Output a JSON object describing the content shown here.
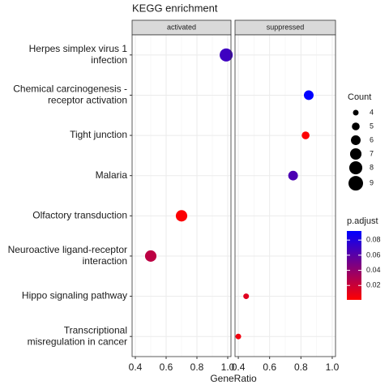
{
  "chart_data": {
    "type": "dotplot",
    "title": "KEGG enrichment",
    "facets": [
      "activated",
      "suppressed"
    ],
    "xlabel": "GeneRatio",
    "xlim": [
      0.379,
      1.021
    ],
    "xticks": [
      0.4,
      0.6,
      0.8,
      {
        "value": 1,
        "label": "1.0"
      }
    ],
    "grid": true,
    "rows": [
      {
        "label": [
          "Herpes simplex virus 1",
          "infection"
        ],
        "facet": "activated",
        "x": 0.99,
        "count": 8,
        "p_adjust": 0.07
      },
      {
        "label": [
          "Chemical carcinogenesis -",
          "receptor activation"
        ],
        "facet": "suppressed",
        "x": 0.85,
        "count": 6,
        "p_adjust": 0.092
      },
      {
        "label": [
          "Tight junction"
        ],
        "facet": "suppressed",
        "x": 0.83,
        "count": 5,
        "p_adjust": 0.002
      },
      {
        "label": [
          "Malaria"
        ],
        "facet": "suppressed",
        "x": 0.75,
        "count": 6,
        "p_adjust": 0.065
      },
      {
        "label": [
          "Olfactory transduction"
        ],
        "facet": "activated",
        "x": 0.7,
        "count": 7,
        "p_adjust": 0.002
      },
      {
        "label": [
          "Neuroactive ligand-receptor",
          "interaction"
        ],
        "facet": "activated",
        "x": 0.5,
        "count": 7,
        "p_adjust": 0.025
      },
      {
        "label": [
          "Hippo signaling pathway"
        ],
        "facet": "suppressed",
        "x": 0.45,
        "count": 4,
        "p_adjust": 0.012
      },
      {
        "label": [
          "Transcriptional",
          "misregulation in cancer"
        ],
        "facet": "suppressed",
        "x": 0.4,
        "count": 4,
        "p_adjust": 0.006
      }
    ],
    "size_legend": {
      "title": "Count",
      "values": [
        4,
        5,
        6,
        7,
        8,
        9
      ]
    },
    "color_legend": {
      "title": "p.adjust",
      "low_color": "#ff0000",
      "high_color": "#0000ff",
      "lim": [
        0.001,
        0.092
      ],
      "ticks": [
        0.02,
        0.04,
        0.06,
        0.08
      ]
    }
  }
}
